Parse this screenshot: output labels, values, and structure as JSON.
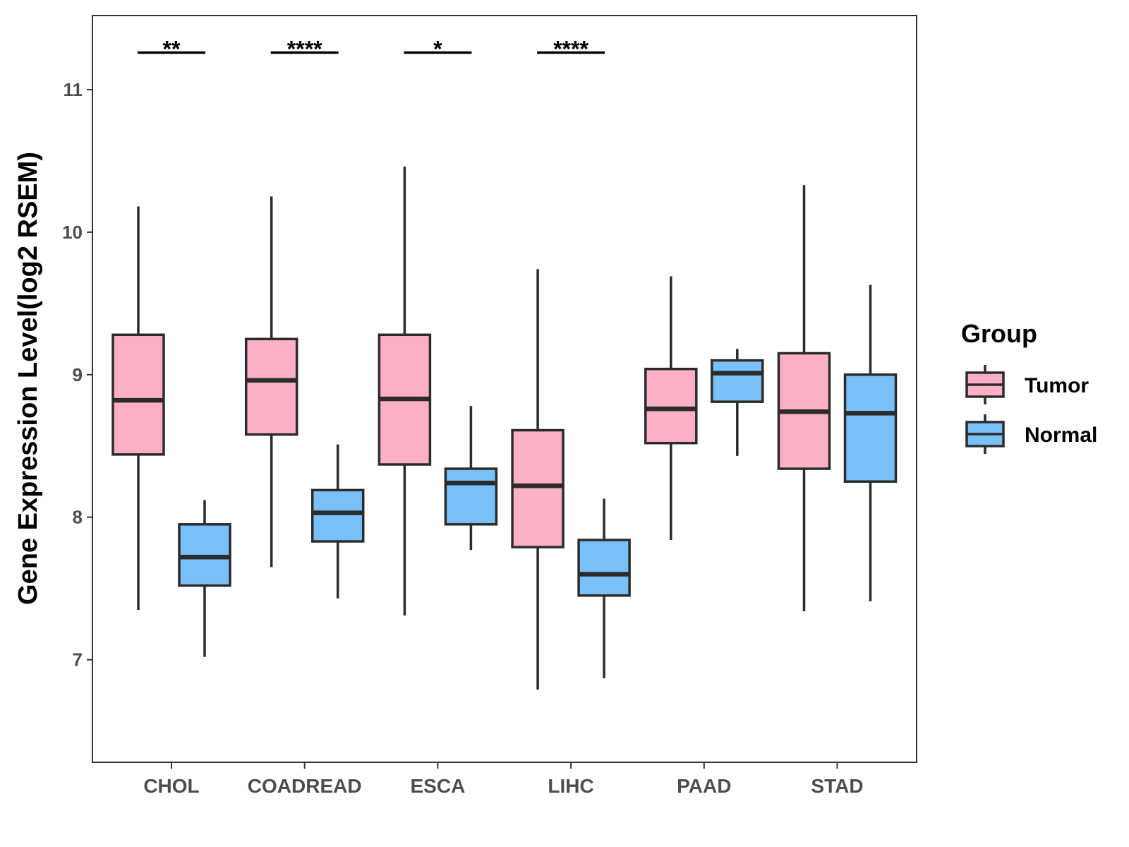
{
  "chart_data": {
    "type": "boxplot",
    "title": "",
    "xlabel": "",
    "ylabel": "Gene Expression Level(log2 RSEM)",
    "ylim": [
      6.28,
      11.52
    ],
    "yticks": [
      7,
      8,
      9,
      10,
      11
    ],
    "grid": false,
    "legend": {
      "title": "Group",
      "position": "right",
      "entries": [
        {
          "name": "Tumor",
          "color": "#FBB1C3"
        },
        {
          "name": "Normal",
          "color": "#79C0F8"
        }
      ]
    },
    "categories": [
      "CHOL",
      "COADREAD",
      "ESCA",
      "LIHC",
      "PAAD",
      "STAD"
    ],
    "series": [
      {
        "name": "Tumor",
        "color": "#FBB1C3",
        "boxes": [
          {
            "min": 7.35,
            "q1": 8.44,
            "median": 8.82,
            "q3": 9.28,
            "max": 10.18
          },
          {
            "min": 7.65,
            "q1": 8.58,
            "median": 8.96,
            "q3": 9.25,
            "max": 10.25
          },
          {
            "min": 7.31,
            "q1": 8.37,
            "median": 8.83,
            "q3": 9.28,
            "max": 10.46
          },
          {
            "min": 6.79,
            "q1": 7.79,
            "median": 8.22,
            "q3": 8.61,
            "max": 9.74
          },
          {
            "min": 7.84,
            "q1": 8.52,
            "median": 8.76,
            "q3": 9.04,
            "max": 9.69
          },
          {
            "min": 7.34,
            "q1": 8.34,
            "median": 8.74,
            "q3": 9.15,
            "max": 10.33
          }
        ]
      },
      {
        "name": "Normal",
        "color": "#79C0F8",
        "boxes": [
          {
            "min": 7.02,
            "q1": 7.52,
            "median": 7.72,
            "q3": 7.95,
            "max": 8.12
          },
          {
            "min": 7.43,
            "q1": 7.83,
            "median": 8.03,
            "q3": 8.19,
            "max": 8.51
          },
          {
            "min": 7.77,
            "q1": 7.95,
            "median": 8.24,
            "q3": 8.34,
            "max": 8.78
          },
          {
            "min": 6.87,
            "q1": 7.45,
            "median": 7.6,
            "q3": 7.84,
            "max": 8.13
          },
          {
            "min": 8.43,
            "q1": 8.81,
            "median": 9.01,
            "q3": 9.1,
            "max": 9.18
          },
          {
            "min": 7.41,
            "q1": 8.25,
            "median": 8.73,
            "q3": 9.0,
            "max": 9.63
          }
        ]
      }
    ],
    "significance": [
      {
        "category": "CHOL",
        "label": "**",
        "y": 11.26
      },
      {
        "category": "COADREAD",
        "label": "****",
        "y": 11.26
      },
      {
        "category": "ESCA",
        "label": "*",
        "y": 11.26
      },
      {
        "category": "LIHC",
        "label": "****",
        "y": 11.26
      }
    ]
  }
}
